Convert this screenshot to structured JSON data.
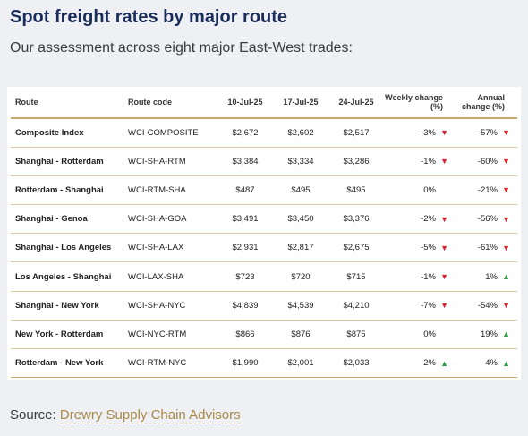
{
  "title": "Spot freight rates by major route",
  "subtitle": "Our assessment across eight major East-West trades:",
  "table": {
    "headers": {
      "route": "Route",
      "code": "Route code",
      "d1": "10-Jul-25",
      "d2": "17-Jul-25",
      "d3": "24-Jul-25",
      "weekly": "Weekly change (%)",
      "annual": "Annual change (%)"
    },
    "rows": [
      {
        "route": "Composite Index",
        "code": "WCI-COMPOSITE",
        "d1": "$2,672",
        "d2": "$2,602",
        "d3": "$2,517",
        "weekly": "-3%",
        "weekly_dir": "down",
        "annual": "-57%",
        "annual_dir": "down"
      },
      {
        "route": "Shanghai - Rotterdam",
        "code": "WCI-SHA-RTM",
        "d1": "$3,384",
        "d2": "$3,334",
        "d3": "$3,286",
        "weekly": "-1%",
        "weekly_dir": "down",
        "annual": "-60%",
        "annual_dir": "down"
      },
      {
        "route": "Rotterdam - Shanghai",
        "code": "WCI-RTM-SHA",
        "d1": "$487",
        "d2": "$495",
        "d3": "$495",
        "weekly": "0%",
        "weekly_dir": "none",
        "annual": "-21%",
        "annual_dir": "down"
      },
      {
        "route": "Shanghai - Genoa",
        "code": "WCI-SHA-GOA",
        "d1": "$3,491",
        "d2": "$3,450",
        "d3": "$3,376",
        "weekly": "-2%",
        "weekly_dir": "down",
        "annual": "-56%",
        "annual_dir": "down"
      },
      {
        "route": "Shanghai - Los Angeles",
        "code": "WCI-SHA-LAX",
        "d1": "$2,931",
        "d2": "$2,817",
        "d3": "$2,675",
        "weekly": "-5%",
        "weekly_dir": "down",
        "annual": "-61%",
        "annual_dir": "down"
      },
      {
        "route": "Los Angeles - Shanghai",
        "code": "WCI-LAX-SHA",
        "d1": "$723",
        "d2": "$720",
        "d3": "$715",
        "weekly": "-1%",
        "weekly_dir": "down",
        "annual": "1%",
        "annual_dir": "up"
      },
      {
        "route": "Shanghai - New York",
        "code": "WCI-SHA-NYC",
        "d1": "$4,839",
        "d2": "$4,539",
        "d3": "$4,210",
        "weekly": "-7%",
        "weekly_dir": "down",
        "annual": "-54%",
        "annual_dir": "down"
      },
      {
        "route": "New York - Rotterdam",
        "code": "WCI-NYC-RTM",
        "d1": "$866",
        "d2": "$876",
        "d3": "$875",
        "weekly": "0%",
        "weekly_dir": "none",
        "annual": "19%",
        "annual_dir": "up"
      },
      {
        "route": "Rotterdam - New York",
        "code": "WCI-RTM-NYC",
        "d1": "$1,990",
        "d2": "$2,001",
        "d3": "$2,033",
        "weekly": "2%",
        "weekly_dir": "up",
        "annual": "4%",
        "annual_dir": "up"
      }
    ]
  },
  "source": {
    "label": "Source:",
    "link_text": "Drewry Supply Chain Advisors"
  },
  "colors": {
    "title": "#1a2d5a",
    "accent_gold": "#c8ab6b",
    "down_arrow": "#d9262b",
    "up_arrow": "#2e9e44"
  }
}
